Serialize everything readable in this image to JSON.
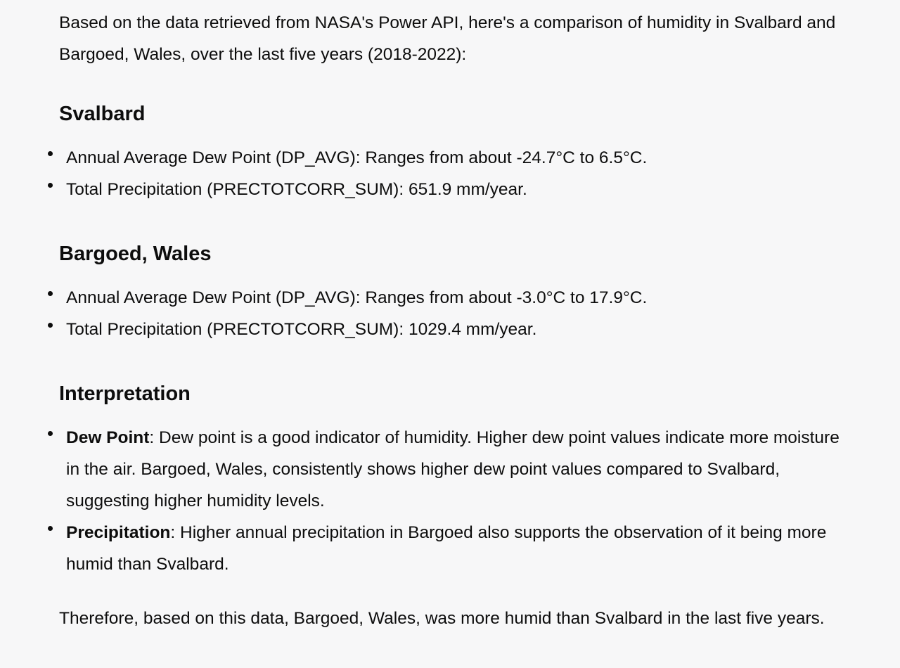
{
  "intro": "Based on the data retrieved from NASA's Power API, here's a comparison of humidity in Svalbard and Bargoed, Wales, over the last five years (2018-2022):",
  "sections": [
    {
      "heading": "Svalbard",
      "items": [
        "Annual Average Dew Point (DP_AVG): Ranges from about -24.7°C to 6.5°C.",
        "Total Precipitation (PRECTOTCORR_SUM): 651.9 mm/year."
      ]
    },
    {
      "heading": "Bargoed, Wales",
      "items": [
        "Annual Average Dew Point (DP_AVG): Ranges from about -3.0°C to 17.9°C.",
        "Total Precipitation (PRECTOTCORR_SUM): 1029.4 mm/year."
      ]
    }
  ],
  "interpretation": {
    "heading": "Interpretation",
    "items": [
      {
        "term": "Dew Point",
        "text": ": Dew point is a good indicator of humidity. Higher dew point values indicate more moisture in the air. Bargoed, Wales, consistently shows higher dew point values compared to Svalbard, suggesting higher humidity levels."
      },
      {
        "term": "Precipitation",
        "text": ": Higher annual precipitation in Bargoed also supports the observation of it being more humid than Svalbard."
      }
    ]
  },
  "conclusion": "Therefore, based on this data, Bargoed, Wales, was more humid than Svalbard in the last five years."
}
